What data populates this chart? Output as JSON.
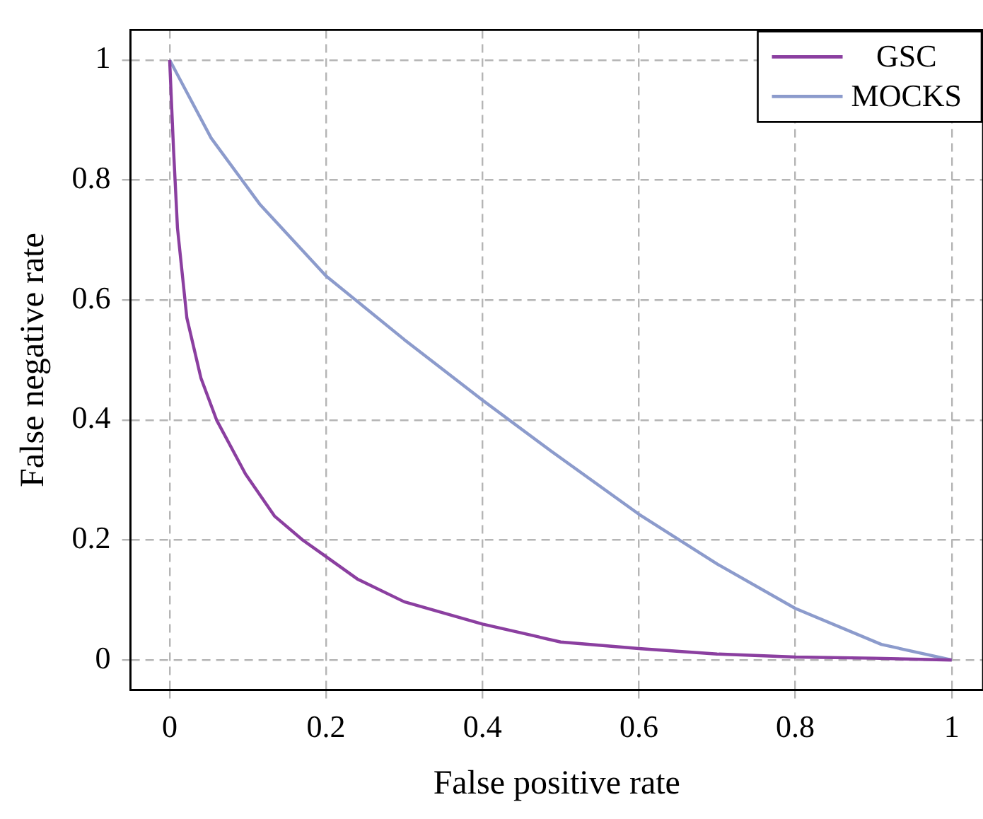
{
  "chart_data": {
    "type": "line",
    "xlabel": "False positive rate",
    "ylabel": "False negative rate",
    "xlim": [
      -0.05,
      1.04
    ],
    "ylim": [
      -0.05,
      1.05
    ],
    "xticks": [
      0,
      0.2,
      0.4,
      0.6,
      0.8,
      1
    ],
    "yticks": [
      0,
      0.2,
      0.4,
      0.6,
      0.8,
      1
    ],
    "grid": true,
    "legend": "top right",
    "marker": "none",
    "line_style": "solid",
    "series": [
      {
        "name": "GSC",
        "color": "#8b3fa0",
        "x": [
          0,
          0.005,
          0.01,
          0.022,
          0.04,
          0.06,
          0.097,
          0.134,
          0.17,
          0.196,
          0.24,
          0.3,
          0.4,
          0.5,
          0.6,
          0.7,
          0.8,
          0.9,
          1
        ],
        "values": [
          1,
          0.85,
          0.72,
          0.57,
          0.47,
          0.4,
          0.31,
          0.24,
          0.2,
          0.176,
          0.135,
          0.097,
          0.06,
          0.03,
          0.019,
          0.01,
          0.005,
          0.003,
          0
        ]
      },
      {
        "name": "MOCKS",
        "color": "#8c9bcc",
        "x": [
          0,
          0.053,
          0.115,
          0.2,
          0.3,
          0.4,
          0.488,
          0.6,
          0.7,
          0.8,
          0.91,
          1
        ],
        "values": [
          1,
          0.87,
          0.76,
          0.64,
          0.534,
          0.433,
          0.348,
          0.243,
          0.16,
          0.086,
          0.026,
          0
        ]
      }
    ]
  }
}
